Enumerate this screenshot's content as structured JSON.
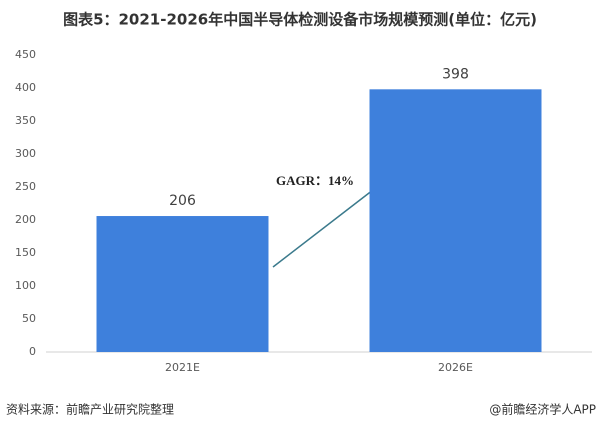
{
  "chart_data": {
    "type": "bar",
    "title": "图表5：2021-2026年中国半导体检测设备市场规模预测(单位：亿元)",
    "categories": [
      "2021E",
      "2026E"
    ],
    "values": [
      206,
      398
    ],
    "color": "#3e80dc",
    "ylim": [
      0,
      450
    ],
    "yticks": [
      0,
      50,
      100,
      150,
      200,
      250,
      300,
      350,
      400,
      450
    ],
    "grid": false,
    "annotation": "GAGR：14%",
    "source": "资料来源：前瞻产业研究院整理",
    "credit": "@前瞻经济学人APP"
  }
}
